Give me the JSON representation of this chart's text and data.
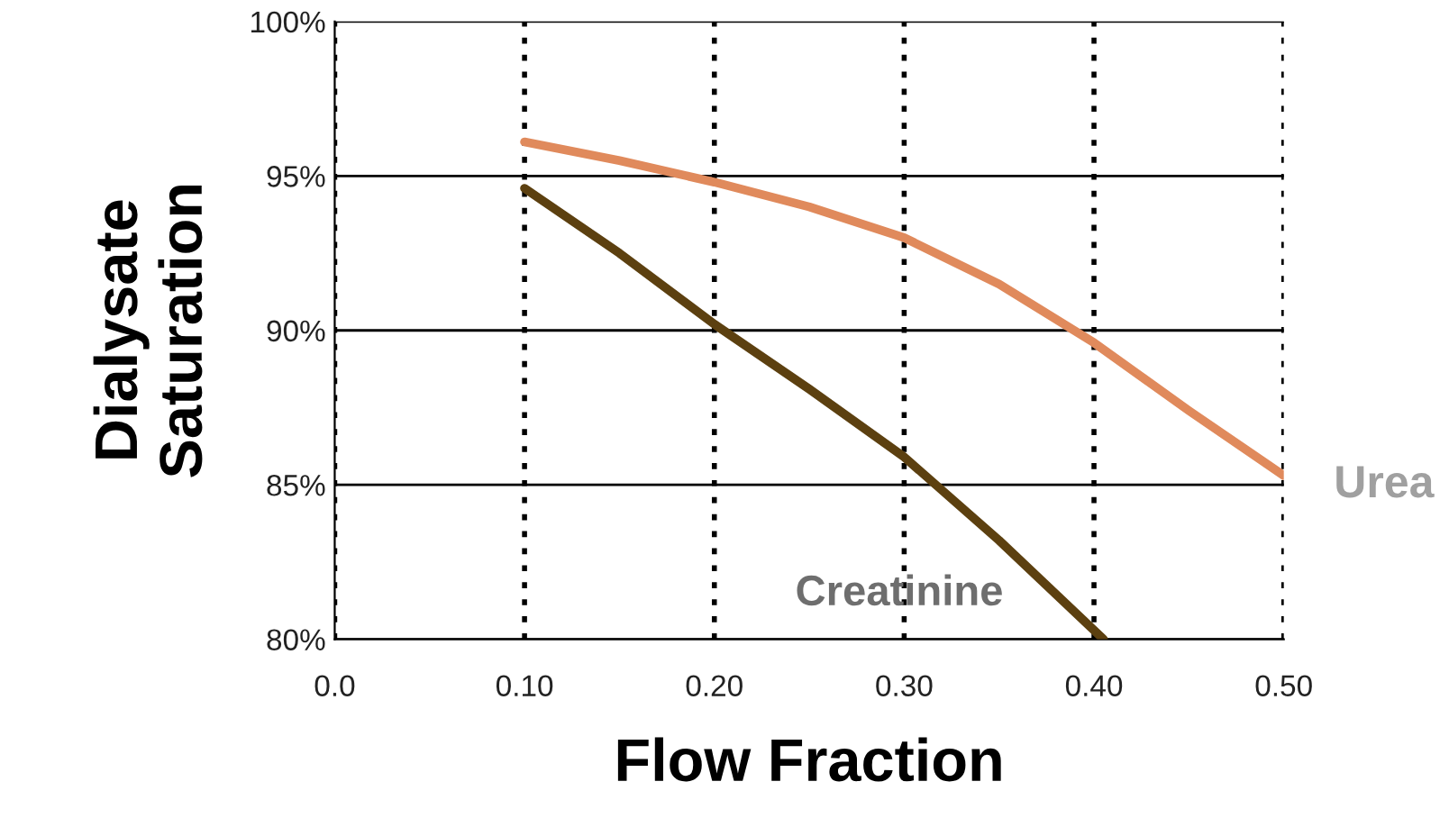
{
  "chart_data": {
    "type": "line",
    "xlabel": "Flow Fraction",
    "ylabel": "Dialysate\nSaturation",
    "x": [
      0.1,
      0.15,
      0.2,
      0.25,
      0.3,
      0.35,
      0.4,
      0.45,
      0.5
    ],
    "series": [
      {
        "name": "Urea",
        "color": "#e08a5c",
        "values": [
          96.1,
          95.5,
          94.8,
          94.0,
          93.0,
          91.5,
          89.6,
          87.4,
          85.3
        ]
      },
      {
        "name": "Creatinine",
        "color": "#5c4010",
        "x": [
          0.1,
          0.15,
          0.2,
          0.25,
          0.3,
          0.35,
          0.405
        ],
        "values": [
          94.6,
          92.5,
          90.2,
          88.1,
          85.9,
          83.2,
          80.0
        ]
      }
    ],
    "xlim": [
      0,
      0.5
    ],
    "ylim": [
      80,
      100
    ],
    "xticks": [
      {
        "value": 0,
        "label": "0.0"
      },
      {
        "value": 0.1,
        "label": "0.10"
      },
      {
        "value": 0.2,
        "label": "0.20"
      },
      {
        "value": 0.3,
        "label": "0.30"
      },
      {
        "value": 0.4,
        "label": "0.40"
      },
      {
        "value": 0.5,
        "label": "0.50"
      }
    ],
    "yticks": [
      {
        "value": 80,
        "label": "80%"
      },
      {
        "value": 85,
        "label": "85%"
      },
      {
        "value": 90,
        "label": "90%"
      },
      {
        "value": 95,
        "label": "95%"
      },
      {
        "value": 100,
        "label": "100%"
      }
    ],
    "grid": true,
    "legend": false,
    "marker": "none",
    "line_style": "solid"
  }
}
